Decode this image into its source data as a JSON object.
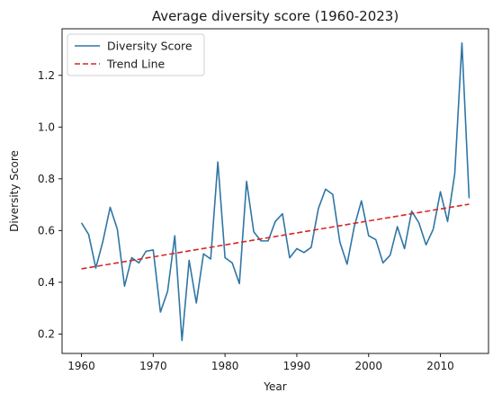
{
  "chart_data": {
    "type": "line",
    "title": "Average diversity score (1960-2023)",
    "xlabel": "Year",
    "ylabel": "Diversity Score",
    "xlim": [
      1957.3,
      2016.7
    ],
    "ylim": [
      0.125,
      1.38
    ],
    "x_ticks": [
      1960,
      1970,
      1980,
      1990,
      2000,
      2010
    ],
    "y_ticks": [
      0.2,
      0.4,
      0.6,
      0.8,
      1.0,
      1.2
    ],
    "y_tick_labels": [
      "0.2",
      "0.4",
      "0.6",
      "0.8",
      "1.0",
      "1.2"
    ],
    "grid": false,
    "legend_position": "upper-left",
    "series": [
      {
        "name": "Diversity Score",
        "style": "solid",
        "color": "#2f76a5",
        "x": [
          1960,
          1961,
          1962,
          1963,
          1964,
          1965,
          1966,
          1967,
          1968,
          1969,
          1970,
          1971,
          1972,
          1973,
          1974,
          1975,
          1976,
          1977,
          1978,
          1979,
          1980,
          1981,
          1982,
          1983,
          1984,
          1985,
          1986,
          1987,
          1988,
          1989,
          1990,
          1991,
          1992,
          1993,
          1994,
          1995,
          1996,
          1997,
          1998,
          1999,
          2000,
          2001,
          2002,
          2003,
          2004,
          2005,
          2006,
          2007,
          2008,
          2009,
          2010,
          2011,
          2012,
          2013,
          2014
        ],
        "y": [
          0.63,
          0.585,
          0.455,
          0.56,
          0.69,
          0.605,
          0.385,
          0.495,
          0.475,
          0.52,
          0.525,
          0.285,
          0.365,
          0.58,
          0.175,
          0.485,
          0.32,
          0.51,
          0.49,
          0.865,
          0.495,
          0.475,
          0.395,
          0.79,
          0.595,
          0.56,
          0.56,
          0.635,
          0.665,
          0.495,
          0.53,
          0.515,
          0.535,
          0.685,
          0.76,
          0.74,
          0.555,
          0.47,
          0.615,
          0.715,
          0.58,
          0.565,
          0.475,
          0.505,
          0.615,
          0.53,
          0.675,
          0.63,
          0.545,
          0.605,
          0.75,
          0.635,
          0.82,
          1.325,
          0.725
        ]
      },
      {
        "name": "Trend Line",
        "style": "dashed",
        "color": "#d62728",
        "x": [
          1960,
          2014
        ],
        "y": [
          0.452,
          0.702
        ]
      }
    ]
  }
}
